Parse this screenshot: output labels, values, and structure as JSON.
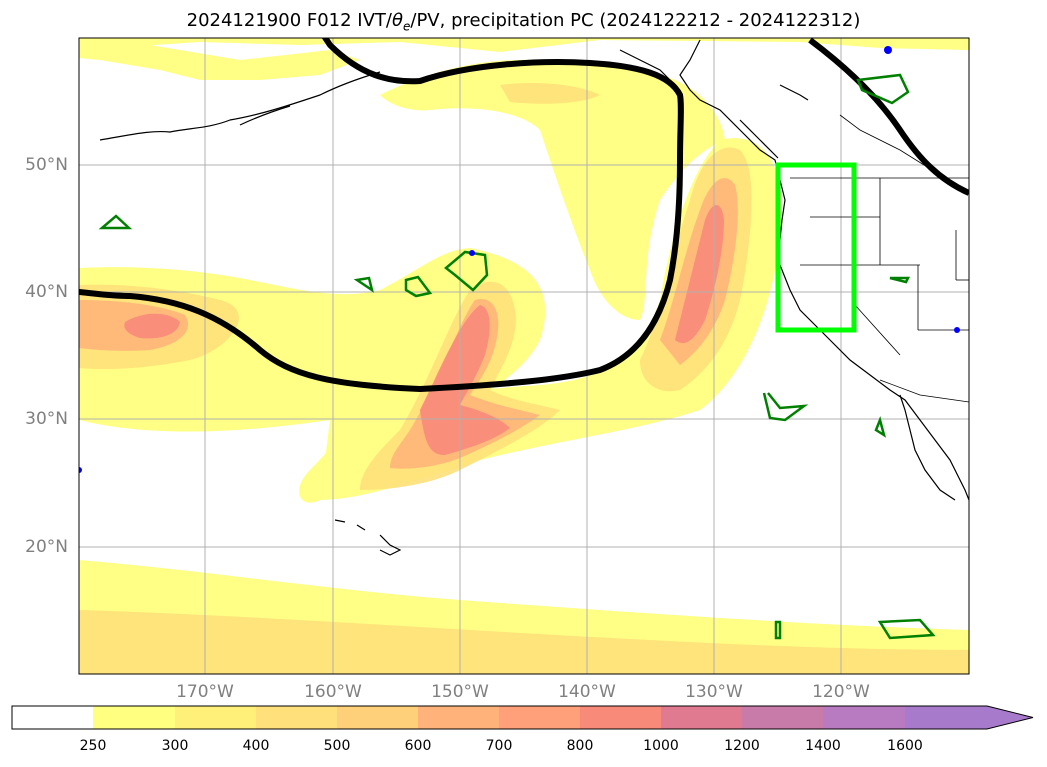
{
  "title": "2024121900 F012 IVT/θe/PV, precipitation PC (2024122212 - 2024122312)",
  "title_parts": {
    "pre": "2024121900 F012 IVT/",
    "theta": "θ",
    "sub": "e",
    "post": "/PV, precipitation PC (2024122212 - 2024122312)"
  },
  "map": {
    "lon_range": [
      -180,
      -110
    ],
    "lat_range": [
      10,
      60
    ],
    "gridlines": true,
    "lat_labels": [
      "20°N",
      "30°N",
      "40°N",
      "50°N"
    ],
    "lat_values": [
      20,
      30,
      40,
      50
    ],
    "lon_labels": [
      "170°W",
      "160°W",
      "150°W",
      "140°W",
      "130°W",
      "120°W"
    ],
    "lon_values": [
      -170,
      -160,
      -150,
      -140,
      -130,
      -120
    ],
    "highlight_box": {
      "lon": [
        -125,
        -119
      ],
      "lat": [
        37,
        50
      ],
      "color": "#00ff00"
    },
    "contour_color": "#000000",
    "pv_color": "#008000"
  },
  "colorbar": {
    "levels": [
      "250",
      "300",
      "400",
      "500",
      "600",
      "700",
      "800",
      "1000",
      "1200",
      "1400",
      "1600"
    ],
    "colors": [
      "#ffffff",
      "#ffff80",
      "#fff07a",
      "#ffe07a",
      "#ffd07a",
      "#ffb37a",
      "#ffa07a",
      "#f88a7a",
      "#e07a90",
      "#c87aa8",
      "#b87ac0",
      "#a87acc"
    ]
  }
}
